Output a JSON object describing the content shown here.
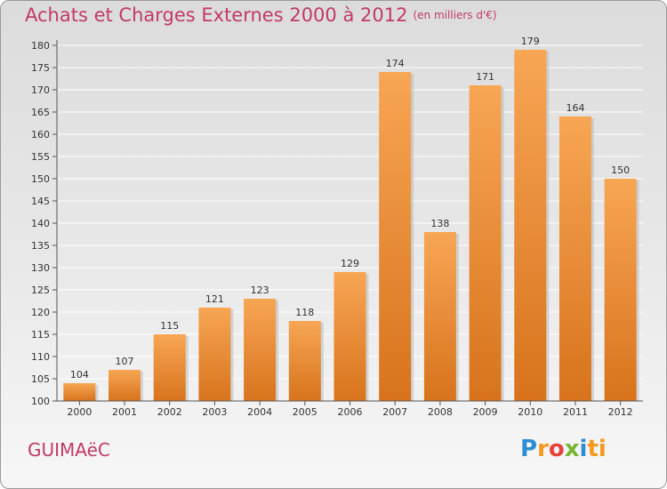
{
  "header": {
    "title": "Achats et Charges Externes 2000 à 2012",
    "subtitle": "(en milliers d'€)"
  },
  "footer": {
    "commune": "GUIMAëC",
    "logo_letters": [
      "P",
      "r",
      "o",
      "x",
      "i",
      "ti"
    ]
  },
  "colors": {
    "title": "#c23a66",
    "bar_light": "#f7a654",
    "bar_dark": "#d8731c",
    "axis": "#555555",
    "grid": "#ffffff"
  },
  "chart_data": {
    "type": "bar",
    "categories": [
      "2000",
      "2001",
      "2002",
      "2003",
      "2004",
      "2005",
      "2006",
      "2007",
      "2008",
      "2009",
      "2010",
      "2011",
      "2012"
    ],
    "values": [
      104,
      107,
      115,
      121,
      123,
      118,
      129,
      174,
      138,
      171,
      179,
      164,
      150
    ],
    "ylim": [
      100,
      180
    ],
    "yticks": [
      100,
      105,
      110,
      115,
      120,
      125,
      130,
      135,
      140,
      145,
      150,
      155,
      160,
      165,
      170,
      175,
      180
    ],
    "grid": true
  }
}
